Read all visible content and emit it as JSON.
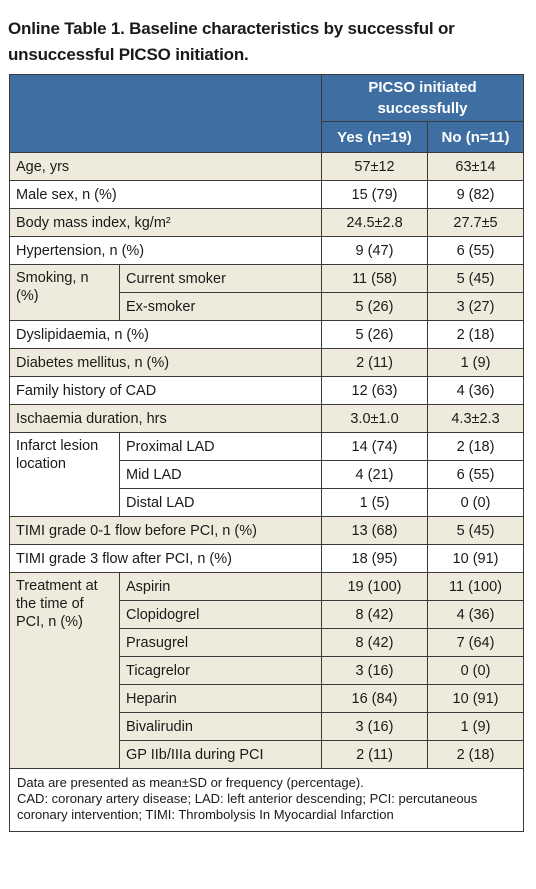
{
  "title": "Online Table 1. Baseline characteristics by successful or unsuccessful PICSO initiation.",
  "header": {
    "group_label": "PICSO initiated successfully",
    "yes_label": "Yes (n=19)",
    "no_label": "No (n=11)"
  },
  "rows": {
    "age": {
      "label": "Age, yrs",
      "yes": "57±12",
      "no": "63±14"
    },
    "male": {
      "label": "Male sex, n (%)",
      "yes": "15 (79)",
      "no": "9 (82)"
    },
    "bmi": {
      "label": "Body mass index, kg/m²",
      "yes": "24.5±2.8",
      "no": "27.7±5"
    },
    "htn": {
      "label": "Hypertension, n (%)",
      "yes": "9 (47)",
      "no": "6 (55)"
    },
    "smoking": {
      "group": "Smoking, n (%)",
      "current": {
        "label": "Current smoker",
        "yes": "11 (58)",
        "no": "5 (45)"
      },
      "ex": {
        "label": "Ex-smoker",
        "yes": "5 (26)",
        "no": "3 (27)"
      }
    },
    "dyslip": {
      "label": "Dyslipidaemia, n (%)",
      "yes": "5 (26)",
      "no": "2 (18)"
    },
    "diabetes": {
      "label": "Diabetes mellitus, n (%)",
      "yes": "2 (11)",
      "no": "1 (9)"
    },
    "family": {
      "label": "Family history of CAD",
      "yes": "12 (63)",
      "no": "4 (36)"
    },
    "ischaemia": {
      "label": "Ischaemia duration, hrs",
      "yes": "3.0±1.0",
      "no": "4.3±2.3"
    },
    "infarct": {
      "group": "Infarct lesion location",
      "proximal": {
        "label": "Proximal LAD",
        "yes": "14 (74)",
        "no": "2 (18)"
      },
      "mid": {
        "label": "Mid LAD",
        "yes": "4 (21)",
        "no": "6 (55)"
      },
      "distal": {
        "label": "Distal LAD",
        "yes": "1 (5)",
        "no": "0 (0)"
      }
    },
    "timi01": {
      "label": "TIMI grade 0-1 flow before PCI, n (%)",
      "yes": "13 (68)",
      "no": "5 (45)"
    },
    "timi3": {
      "label": "TIMI grade 3 flow after PCI, n (%)",
      "yes": "18 (95)",
      "no": "10 (91)"
    },
    "treatment": {
      "group": "Treatment at the time of PCI, n (%)",
      "aspirin": {
        "label": "Aspirin",
        "yes": "19 (100)",
        "no": "11 (100)"
      },
      "clopidogrel": {
        "label": "Clopidogrel",
        "yes": "8 (42)",
        "no": "4 (36)"
      },
      "prasugrel": {
        "label": "Prasugrel",
        "yes": "8 (42)",
        "no": "7 (64)"
      },
      "ticagrelor": {
        "label": "Ticagrelor",
        "yes": "3 (16)",
        "no": "0 (0)"
      },
      "heparin": {
        "label": "Heparin",
        "yes": "16 (84)",
        "no": "10 (91)"
      },
      "bivalirudin": {
        "label": "Bivalirudin",
        "yes": "3 (16)",
        "no": "1 (9)"
      },
      "gp": {
        "label": "GP IIb/IIIa during PCI",
        "yes": "2 (11)",
        "no": "2 (18)"
      }
    }
  },
  "footnote": {
    "line1": "Data are presented as mean±SD or frequency (percentage).",
    "line2": "CAD: coronary artery disease; LAD: left anterior descending; PCI: percutaneous coronary intervention; TIMI: Thrombolysis In Myocardial Infarction"
  }
}
